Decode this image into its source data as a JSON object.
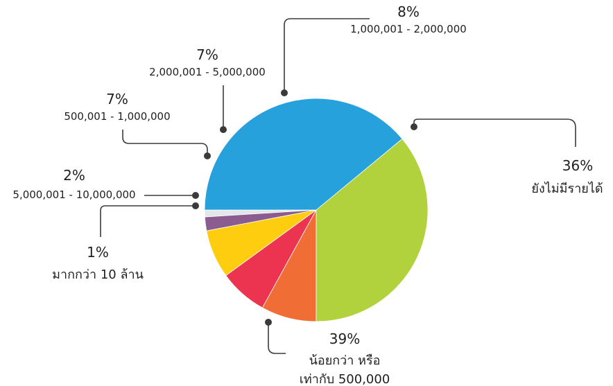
{
  "chart_data": {
    "type": "pie",
    "title": "",
    "start_angle_deg": 180,
    "direction": "counterclockwise",
    "slices": [
      {
        "key": "lt10",
        "percent": "1%",
        "value": 1,
        "label_lines": [
          "มากกว่า 10 ล้าน"
        ],
        "color": "#e4e6ea"
      },
      {
        "key": "r5m10m",
        "percent": "2%",
        "value": 2,
        "label_lines": [
          "5,000,001 - 10,000,000"
        ],
        "color": "#8b5c8f"
      },
      {
        "key": "r500k1m",
        "percent": "7%",
        "value": 7,
        "label_lines": [
          "500,001 - 1,000,000"
        ],
        "color": "#ffcd0f"
      },
      {
        "key": "r2m5m",
        "percent": "7%",
        "value": 7,
        "label_lines": [
          "2,000,001 - 5,000,000"
        ],
        "color": "#ec3450"
      },
      {
        "key": "r1m2m",
        "percent": "8%",
        "value": 8,
        "label_lines": [
          "1,000,001 - 2,000,000"
        ],
        "color": "#f06e35"
      },
      {
        "key": "noincome",
        "percent": "36%",
        "value": 36,
        "label_lines": [
          "ยังไม่มีรายได้"
        ],
        "color": "#b1d23c"
      },
      {
        "key": "le500k",
        "percent": "39%",
        "value": 39,
        "label_lines": [
          "น้อยกว่า หรือ",
          "เท่ากับ 500,000"
        ],
        "color": "#27a1db"
      }
    ]
  }
}
